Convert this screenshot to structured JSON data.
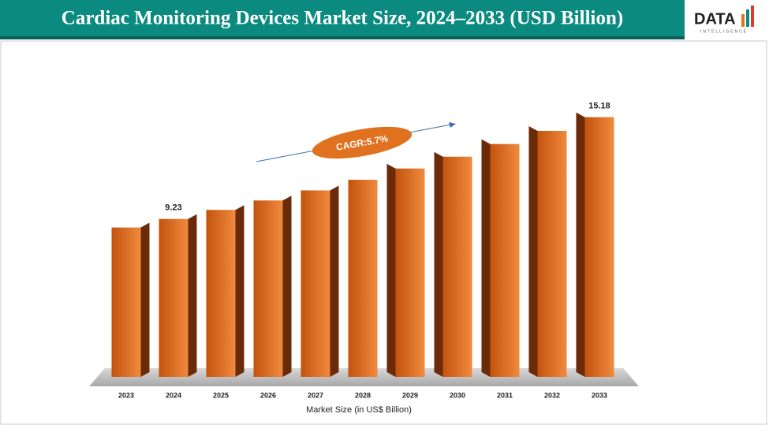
{
  "chart_data": {
    "type": "bar",
    "title": "Cardiac Monitoring Devices Market Size, 2024–2033 (USD Billion)",
    "categories": [
      "2023",
      "2024",
      "2025",
      "2026",
      "2027",
      "2028",
      "2029",
      "2030",
      "2031",
      "2032",
      "2033"
    ],
    "values": [
      8.73,
      9.23,
      9.76,
      10.31,
      10.9,
      11.52,
      12.18,
      12.87,
      13.61,
      14.38,
      15.18
    ],
    "value_labels": [
      null,
      "9.23",
      null,
      null,
      null,
      null,
      null,
      null,
      null,
      null,
      "15.18"
    ],
    "x_label": "Market Size (in US$ Billion)",
    "annotation": "CAGR:5.7%",
    "color": "#e0711f",
    "logo": {
      "text": "DATA",
      "subtext": "INTELLIGENCE"
    }
  }
}
